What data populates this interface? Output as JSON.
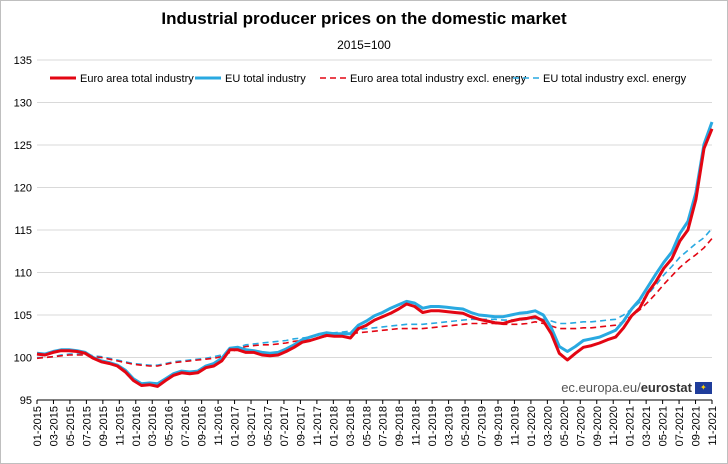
{
  "chart_data": {
    "type": "line",
    "title": "Industrial producer prices on the domestic market",
    "subtitle": "2015=100",
    "ylim": [
      95,
      135
    ],
    "yticks": [
      95,
      100,
      105,
      110,
      115,
      120,
      125,
      130,
      135
    ],
    "grid": "horizontal",
    "legend_position": "top",
    "xtick_labels": [
      "01-2015",
      "03-2015",
      "05-2015",
      "07-2015",
      "09-2015",
      "11-2015",
      "01-2016",
      "03-2016",
      "05-2016",
      "07-2016",
      "09-2016",
      "11-2016",
      "01-2017",
      "03-2017",
      "05-2017",
      "07-2017",
      "09-2017",
      "11-2017",
      "01-2018",
      "03-2018",
      "05-2018",
      "07-2018",
      "09-2018",
      "11-2018",
      "01-2019",
      "03-2019",
      "05-2019",
      "07-2019",
      "09-2019",
      "11-2019",
      "01-2020",
      "03-2020",
      "05-2020",
      "07-2020",
      "09-2020",
      "11-2020",
      "01-2021",
      "03-2021",
      "05-2021",
      "07-2021",
      "09-2021",
      "11-2021"
    ],
    "series": [
      {
        "name": "Euro area total industry",
        "color": "#e30613",
        "dash": "solid",
        "values": [
          100.4,
          100.3,
          100.6,
          100.8,
          100.8,
          100.7,
          100.5,
          99.9,
          99.5,
          99.3,
          99.0,
          98.3,
          97.3,
          96.7,
          96.8,
          96.6,
          97.3,
          97.9,
          98.2,
          98.1,
          98.2,
          98.8,
          99.0,
          99.6,
          100.9,
          100.9,
          100.6,
          100.6,
          100.3,
          100.2,
          100.3,
          100.7,
          101.2,
          101.8,
          102.0,
          102.3,
          102.6,
          102.5,
          102.5,
          102.3,
          103.4,
          103.8,
          104.4,
          104.8,
          105.2,
          105.7,
          106.3,
          106.0,
          105.3,
          105.5,
          105.5,
          105.4,
          105.3,
          105.2,
          104.8,
          104.5,
          104.3,
          104.1,
          104.0,
          104.3,
          104.5,
          104.6,
          104.8,
          104.3,
          102.8,
          100.5,
          99.7,
          100.5,
          101.2,
          101.4,
          101.7,
          102.1,
          102.4,
          103.5,
          104.9,
          105.8,
          107.6,
          108.9,
          110.5,
          111.6,
          113.7,
          115.0,
          118.6,
          124.6,
          126.9
        ]
      },
      {
        "name": "EU total industry",
        "color": "#29a9e1",
        "dash": "solid",
        "values": [
          100.5,
          100.4,
          100.7,
          100.9,
          100.9,
          100.8,
          100.6,
          100.0,
          99.6,
          99.4,
          99.1,
          98.5,
          97.5,
          96.9,
          97.0,
          96.9,
          97.5,
          98.1,
          98.4,
          98.3,
          98.4,
          99.0,
          99.3,
          99.9,
          101.1,
          101.2,
          100.9,
          100.8,
          100.6,
          100.5,
          100.6,
          101.0,
          101.5,
          102.1,
          102.4,
          102.7,
          102.9,
          102.8,
          102.8,
          102.8,
          103.8,
          104.3,
          104.9,
          105.3,
          105.8,
          106.2,
          106.6,
          106.4,
          105.8,
          106.0,
          106.0,
          105.9,
          105.8,
          105.7,
          105.3,
          105.0,
          104.9,
          104.8,
          104.8,
          105.0,
          105.2,
          105.3,
          105.5,
          105.0,
          103.5,
          101.3,
          100.7,
          101.3,
          102.0,
          102.2,
          102.4,
          102.8,
          103.2,
          104.3,
          105.7,
          106.8,
          108.3,
          109.8,
          111.2,
          112.4,
          114.6,
          116.0,
          119.4,
          125.1,
          127.7
        ]
      },
      {
        "name": "Euro area total industry excl. energy",
        "color": "#e30613",
        "dash": "dashed",
        "values": [
          99.9,
          100.0,
          100.1,
          100.2,
          100.3,
          100.3,
          100.3,
          100.1,
          100.0,
          99.8,
          99.6,
          99.4,
          99.2,
          99.1,
          99.0,
          99.0,
          99.2,
          99.4,
          99.5,
          99.6,
          99.7,
          99.8,
          99.9,
          100.1,
          100.6,
          101.0,
          101.3,
          101.4,
          101.5,
          101.5,
          101.6,
          101.7,
          101.9,
          102.0,
          102.1,
          102.3,
          102.5,
          102.6,
          102.7,
          102.8,
          102.9,
          103.0,
          103.1,
          103.2,
          103.3,
          103.4,
          103.4,
          103.4,
          103.4,
          103.5,
          103.6,
          103.7,
          103.8,
          103.9,
          104.0,
          104.0,
          104.0,
          104.0,
          103.9,
          103.9,
          103.9,
          104.0,
          104.2,
          104.0,
          103.7,
          103.4,
          103.4,
          103.4,
          103.5,
          103.5,
          103.6,
          103.7,
          103.8,
          104.2,
          104.9,
          105.6,
          106.5,
          107.5,
          108.6,
          109.6,
          110.6,
          111.4,
          112.1,
          112.9,
          114.0
        ]
      },
      {
        "name": "EU total industry excl. energy",
        "color": "#29a9e1",
        "dash": "dashed",
        "values": [
          100.0,
          100.0,
          100.1,
          100.3,
          100.4,
          100.4,
          100.4,
          100.2,
          100.1,
          99.9,
          99.7,
          99.5,
          99.3,
          99.2,
          99.1,
          99.1,
          99.3,
          99.5,
          99.6,
          99.7,
          99.8,
          99.9,
          100.1,
          100.3,
          100.8,
          101.2,
          101.5,
          101.6,
          101.7,
          101.8,
          101.9,
          102.0,
          102.2,
          102.3,
          102.4,
          102.6,
          102.8,
          102.9,
          103.0,
          103.1,
          103.3,
          103.4,
          103.5,
          103.6,
          103.7,
          103.8,
          103.9,
          103.9,
          103.9,
          104.0,
          104.1,
          104.2,
          104.3,
          104.4,
          104.5,
          104.5,
          104.5,
          104.5,
          104.4,
          104.4,
          104.4,
          104.5,
          104.6,
          104.5,
          104.3,
          104.0,
          104.0,
          104.1,
          104.2,
          104.2,
          104.3,
          104.4,
          104.5,
          105.0,
          105.7,
          106.5,
          107.4,
          108.5,
          109.7,
          110.7,
          111.8,
          112.6,
          113.4,
          114.1,
          115.2
        ]
      }
    ]
  },
  "branding": {
    "site_text": "ec.europa.eu/",
    "brand_text": "eurostat"
  }
}
